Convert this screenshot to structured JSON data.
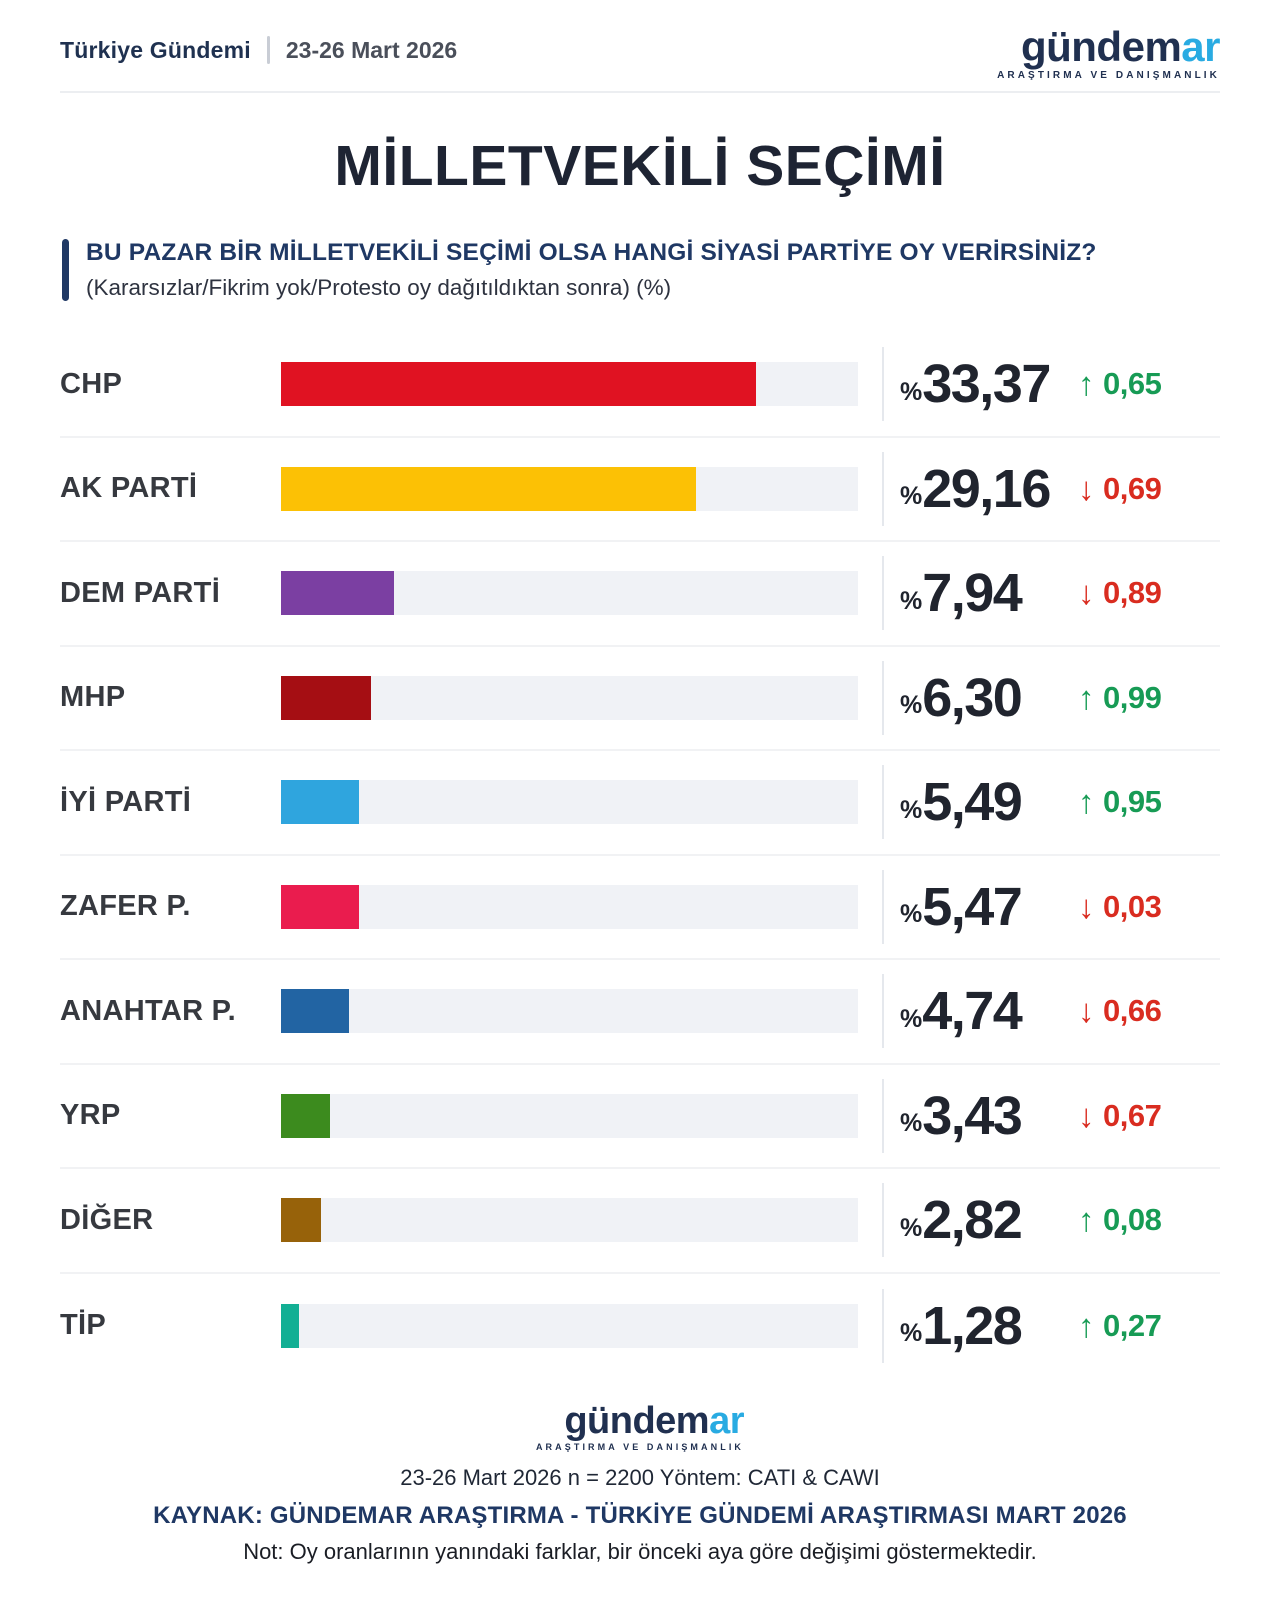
{
  "header": {
    "brand_left": "Türkiye Gündemi",
    "date_range": "23-26 Mart 2026"
  },
  "brand": {
    "wordmark_primary": "gündem",
    "wordmark_accent": "ar",
    "tagline": "ARAŞTIRMA VE DANIŞMANLIK",
    "accent_color": "#29ABE2",
    "primary_color": "#203050"
  },
  "title": "MİLLETVEKİLİ SEÇİMİ",
  "question": {
    "text": "BU PAZAR BİR MİLLETVEKİLİ SEÇİMİ OLSA HANGİ SİYASİ PARTİYE OY VERİRSİNİZ?",
    "subtext": "(Kararsızlar/Fikrim yok/Protesto oy dağıtıldıktan sonra) (%)"
  },
  "chart_data": {
    "type": "bar",
    "orientation": "horizontal",
    "unit": "%",
    "axis_max": 40.5,
    "title": "MİLLETVEKİLİ SEÇİMİ",
    "categories": [
      "CHP",
      "AK PARTİ",
      "DEM PARTİ",
      "MHP",
      "İYİ PARTİ",
      "ZAFER P.",
      "ANAHTAR P.",
      "YRP",
      "DİĞER",
      "TİP"
    ],
    "values": [
      33.37,
      29.16,
      7.94,
      6.3,
      5.49,
      5.47,
      4.74,
      3.43,
      2.82,
      1.28
    ],
    "rows": [
      {
        "party": "CHP",
        "value": 33.37,
        "value_label": "33,37",
        "change": 0.65,
        "change_label": "0,65",
        "direction": "up",
        "color": "#E01222"
      },
      {
        "party": "AK PARTİ",
        "value": 29.16,
        "value_label": "29,16",
        "change": 0.69,
        "change_label": "0,69",
        "direction": "down",
        "color": "#FCC105"
      },
      {
        "party": "DEM PARTİ",
        "value": 7.94,
        "value_label": "7,94",
        "change": 0.89,
        "change_label": "0,89",
        "direction": "down",
        "color": "#7B3FA2"
      },
      {
        "party": "MHP",
        "value": 6.3,
        "value_label": "6,30",
        "change": 0.99,
        "change_label": "0,99",
        "direction": "up",
        "color": "#A50E13"
      },
      {
        "party": "İYİ PARTİ",
        "value": 5.49,
        "value_label": "5,49",
        "change": 0.95,
        "change_label": "0,95",
        "direction": "up",
        "color": "#2FA5DE"
      },
      {
        "party": "ZAFER P.",
        "value": 5.47,
        "value_label": "5,47",
        "change": 0.03,
        "change_label": "0,03",
        "direction": "down",
        "color": "#EA1C4E"
      },
      {
        "party": "ANAHTAR P.",
        "value": 4.74,
        "value_label": "4,74",
        "change": 0.66,
        "change_label": "0,66",
        "direction": "down",
        "color": "#2264A3"
      },
      {
        "party": "YRP",
        "value": 3.43,
        "value_label": "3,43",
        "change": 0.67,
        "change_label": "0,67",
        "direction": "down",
        "color": "#3C8B1E"
      },
      {
        "party": "DİĞER",
        "value": 2.82,
        "value_label": "2,82",
        "change": 0.08,
        "change_label": "0,08",
        "direction": "up",
        "color": "#97620A"
      },
      {
        "party": "TİP",
        "value": 1.28,
        "value_label": "1,28",
        "change": 0.27,
        "change_label": "0,27",
        "direction": "up",
        "color": "#12AF94"
      }
    ],
    "legend": null,
    "grid": false,
    "colors": {
      "up": "#179B55",
      "down": "#D92C20",
      "track": "#F0F2F6"
    }
  },
  "footer": {
    "method_line": "23-26 Mart 2026 n = 2200 Yöntem: CATI & CAWI",
    "source_line": "KAYNAK: GÜNDEMAR ARAŞTIRMA - TÜRKİYE GÜNDEMİ ARAŞTIRMASI MART 2026",
    "note_line": "Not: Oy oranlarının yanındaki farklar, bir önceki aya göre değişimi göstermektedir."
  }
}
